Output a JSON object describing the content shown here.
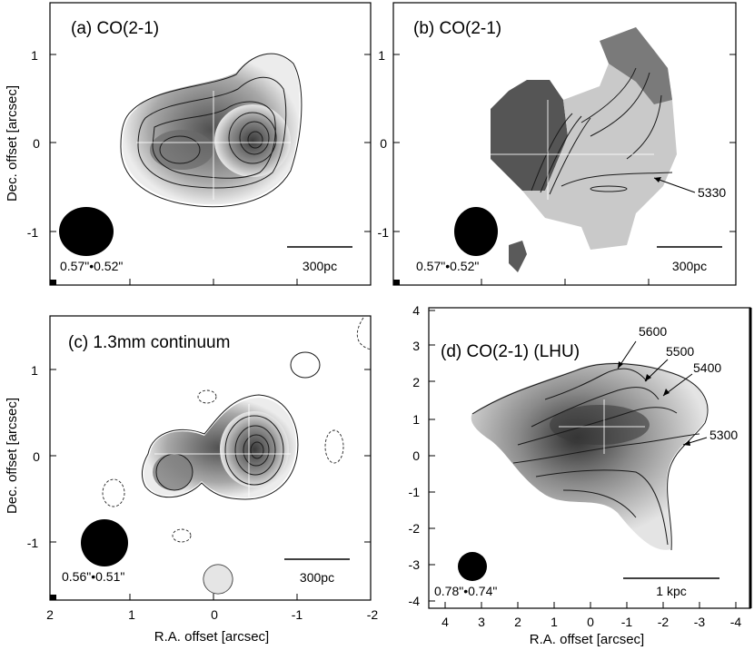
{
  "figure": {
    "ylabel": "Dec. offset [arcsec]",
    "xlabel": "R.A. offset [arcsec]",
    "colors": {
      "frame": "#000000",
      "dark": "#3c3c3c",
      "mid": "#8a8a8a",
      "light": "#d8d8d8"
    }
  },
  "panels": {
    "a": {
      "label": "(a) CO(2-1)",
      "beam": "0.57\"•0.52\"",
      "scalebar": "300pc",
      "yticks": [
        "1",
        "0",
        "-1"
      ]
    },
    "b": {
      "label": "(b) CO(2-1)",
      "beam": "0.57\"•0.52\"",
      "scalebar": "300pc",
      "annotation": "5330",
      "yticks": [
        "1",
        "0",
        "-1"
      ]
    },
    "c": {
      "label": "(c) 1.3mm continuum",
      "beam": "0.56\"•0.51\"",
      "scalebar": "300pc",
      "yticks": [
        "1",
        "0",
        "-1"
      ],
      "xticks": [
        "2",
        "1",
        "0",
        "-1",
        "-2"
      ]
    },
    "d": {
      "label": "(d) CO(2-1) (LHU)",
      "beam": "0.78\"•0.74\"",
      "scalebar": "1 kpc",
      "annotations": [
        "5600",
        "5500",
        "5400",
        "5300"
      ],
      "yticks": [
        "4",
        "3",
        "2",
        "1",
        "0",
        "-1",
        "-2",
        "-3",
        "-4"
      ],
      "xticks": [
        "4",
        "3",
        "2",
        "1",
        "0",
        "-1",
        "-2",
        "-3",
        "-4"
      ]
    }
  }
}
